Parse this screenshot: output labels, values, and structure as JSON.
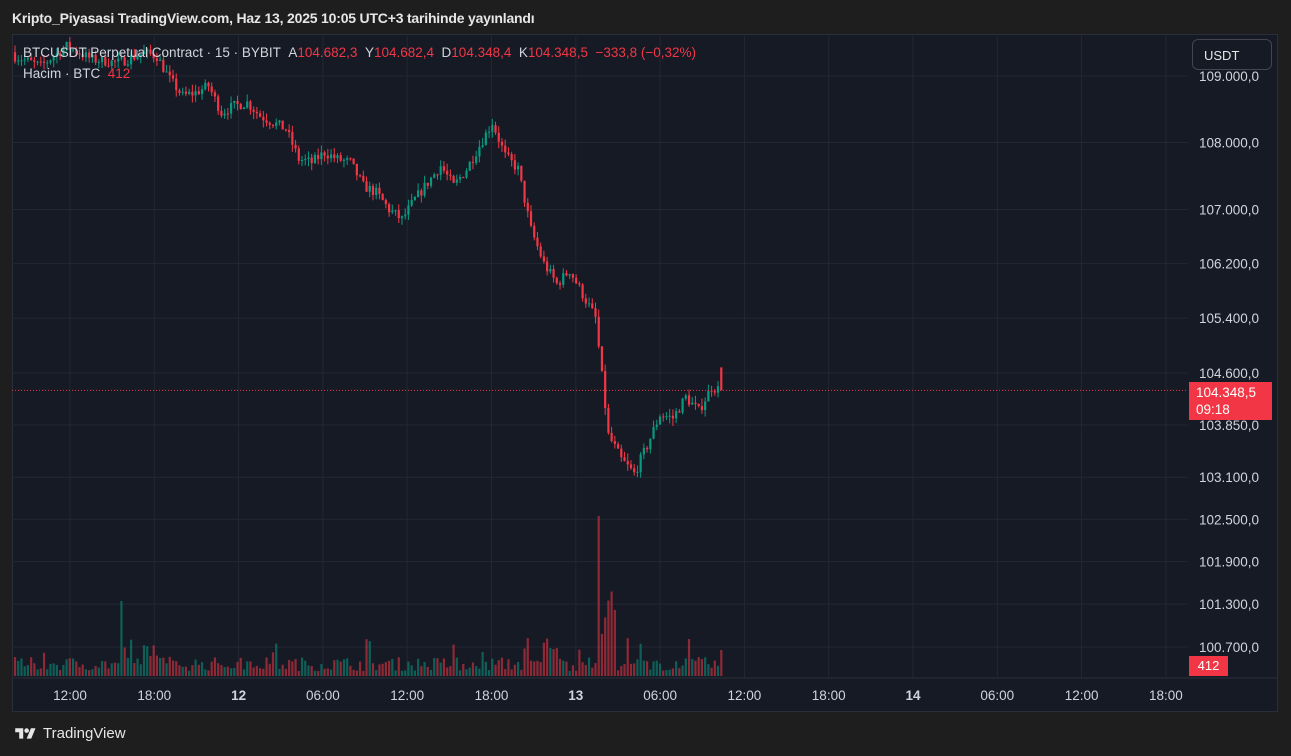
{
  "published_title": "Kripto_Piyasasi TradingView.com, Haz 13, 2025 10:05 UTC+3 tarihinde yayınlandı",
  "legend": {
    "symbol": "BTCUSDT Perpetual Contract · 15 · BYBIT",
    "open_label": "A",
    "open_value": "104.682,3",
    "high_label": "Y",
    "high_value": "104.682,4",
    "low_label": "D",
    "low_value": "104.348,4",
    "close_label": "K",
    "close_value": "104.348,5",
    "change": "−333,8 (−0,32%)",
    "volume_label": "Hacim · BTC",
    "volume_value": "412"
  },
  "currency_button": "USDT",
  "last_price": {
    "price": "104.348,5",
    "countdown": "09:18"
  },
  "volume_tag": "412",
  "brand": "TradingView",
  "colors": {
    "up": "#089981",
    "down": "#f23645",
    "background": "#161a25",
    "grid": "#232733",
    "text": "#d1d4dc"
  },
  "chart_data": {
    "type": "candlestick",
    "timeframe": "15",
    "y_axis": {
      "ticks": [
        109000,
        108000,
        107000,
        106200,
        105400,
        104600,
        103850,
        103100,
        102500,
        101900,
        101300,
        100700
      ],
      "tick_labels": [
        "109.000,0",
        "108.000,0",
        "107.000,0",
        "106.200,0",
        "105.400,0",
        "104.600,0",
        "103.850,0",
        "103.100,0",
        "102.500,0",
        "101.900,0",
        "101.300,0",
        "100.700,0"
      ],
      "scale": "log"
    },
    "x_axis": {
      "tick_labels": [
        "12:00",
        "18:00",
        "12",
        "06:00",
        "12:00",
        "18:00",
        "13",
        "06:00",
        "12:00",
        "18:00",
        "14",
        "06:00",
        "12:00",
        "18:00"
      ],
      "bold_labels": [
        "12",
        "13",
        "14"
      ]
    },
    "last_price": 104348.5,
    "anchors": [
      [
        0,
        109300
      ],
      [
        8,
        109150
      ],
      [
        16,
        109450
      ],
      [
        24,
        109250
      ],
      [
        32,
        109200
      ],
      [
        40,
        109350
      ],
      [
        44,
        109300
      ],
      [
        48,
        108950
      ],
      [
        52,
        108700
      ],
      [
        56,
        108750
      ],
      [
        60,
        108850
      ],
      [
        64,
        108450
      ],
      [
        68,
        108550
      ],
      [
        72,
        108600
      ],
      [
        76,
        108400
      ],
      [
        80,
        108300
      ],
      [
        84,
        108200
      ],
      [
        88,
        107750
      ],
      [
        92,
        107700
      ],
      [
        96,
        107850
      ],
      [
        100,
        107750
      ],
      [
        104,
        107700
      ],
      [
        108,
        107350
      ],
      [
        112,
        107250
      ],
      [
        116,
        107000
      ],
      [
        120,
        106850
      ],
      [
        124,
        107150
      ],
      [
        128,
        107400
      ],
      [
        132,
        107650
      ],
      [
        136,
        107350
      ],
      [
        140,
        107600
      ],
      [
        144,
        107950
      ],
      [
        148,
        108300
      ],
      [
        152,
        107800
      ],
      [
        156,
        107600
      ],
      [
        160,
        106700
      ],
      [
        164,
        106200
      ],
      [
        168,
        105900
      ],
      [
        172,
        106100
      ],
      [
        176,
        105750
      ],
      [
        180,
        105400
      ],
      [
        184,
        103700
      ],
      [
        188,
        103350
      ],
      [
        192,
        103150
      ],
      [
        196,
        103550
      ],
      [
        200,
        104000
      ],
      [
        204,
        103950
      ],
      [
        208,
        104250
      ],
      [
        212,
        104050
      ],
      [
        216,
        104400
      ],
      [
        219,
        104348.5
      ]
    ],
    "volume": {
      "unit": "BTC",
      "last": 412
    }
  }
}
